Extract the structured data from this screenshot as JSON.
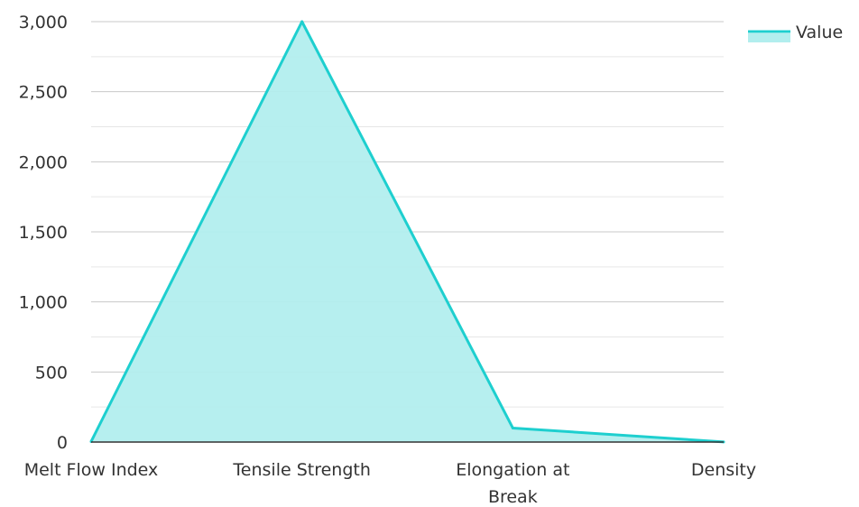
{
  "chart_data": {
    "type": "area",
    "categories": [
      "Melt Flow Index",
      "Tensile Strength",
      "Elongation at Break",
      "Density"
    ],
    "series": [
      {
        "name": "Value",
        "values": [
          3.5,
          3000,
          100,
          0.95
        ]
      }
    ],
    "y_ticks": [
      "0",
      "500",
      "1,000",
      "1,500",
      "2,000",
      "2,500",
      "3,000"
    ],
    "x_tick_lines": [
      [
        "Melt Flow Index"
      ],
      [
        "Tensile Strength"
      ],
      [
        "Elongation at",
        "Break"
      ],
      [
        "Density"
      ]
    ],
    "ylim": [
      0,
      3000
    ],
    "grid": true,
    "legend": {
      "position": "top-right",
      "label": "Value"
    },
    "colors": {
      "line": "#1ecfcf",
      "fill": "#b2eeee",
      "grid": "#c8c8c8",
      "minor_grid": "#e6e6e6",
      "axis": "#333333"
    }
  }
}
